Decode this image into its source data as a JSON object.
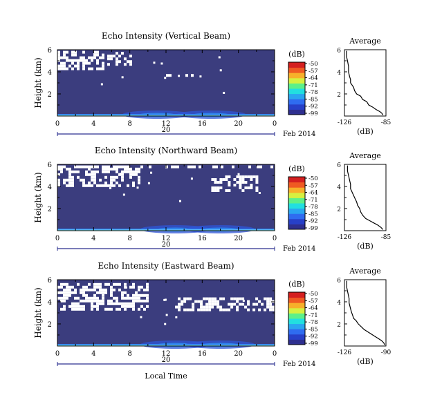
{
  "colors": {
    "background": "#3b3d7e",
    "gap": "#ffffff",
    "colorbar": [
      "#2e2f8f",
      "#2740c8",
      "#2f6cf0",
      "#2aa6f0",
      "#22dfe0",
      "#5cf08a",
      "#d6f040",
      "#f7b02a",
      "#ef5a22",
      "#d41f1f"
    ]
  },
  "panels": [
    {
      "title": "Echo Intensity (Vertical Beam)",
      "ylabel": "Height (km)",
      "yticks": [
        "6",
        "4",
        "2"
      ],
      "xticks": [
        "0",
        "4",
        "8",
        "12",
        "16",
        "20",
        "0"
      ],
      "date_tick": "20",
      "date_label": "Feb 2014",
      "cb_unit": "(dB)",
      "cb_ticks": [
        "-50",
        "-57",
        "-64",
        "-71",
        "-78",
        "-85",
        "-92",
        "-99"
      ],
      "avg_title": "Average",
      "avg_yticks": [
        "6",
        "4",
        "2"
      ],
      "avg_xticks": [
        "-126",
        "-85"
      ],
      "avg_xlabel": "(dB)"
    },
    {
      "title": "Echo Intensity (Northward Beam)",
      "ylabel": "Height (km)",
      "yticks": [
        "6",
        "4",
        "2"
      ],
      "xticks": [
        "0",
        "4",
        "8",
        "12",
        "16",
        "20",
        "0"
      ],
      "date_tick": "20",
      "date_label": "Feb 2014",
      "cb_unit": "(dB)",
      "cb_ticks": [
        "-50",
        "-57",
        "-64",
        "-71",
        "-78",
        "-85",
        "-92",
        "-99"
      ],
      "avg_title": "Average",
      "avg_yticks": [
        "6",
        "4",
        "2"
      ],
      "avg_xticks": [
        "-126",
        "-85"
      ],
      "avg_xlabel": "(dB)"
    },
    {
      "title": "Echo Intensity (Eastward Beam)",
      "ylabel": "Height (km)",
      "yticks": [
        "6",
        "4",
        "2"
      ],
      "xticks": [
        "0",
        "4",
        "8",
        "12",
        "16",
        "20",
        "0"
      ],
      "date_tick": "20",
      "date_label": "Feb 2014",
      "cb_unit": "(dB)",
      "cb_ticks": [
        "-50",
        "-57",
        "-64",
        "-71",
        "-78",
        "-85",
        "-92",
        "-99"
      ],
      "avg_title": "Average",
      "avg_yticks": [
        "6",
        "4",
        "2"
      ],
      "avg_xticks": [
        "-126",
        "-90"
      ],
      "avg_xlabel": "(dB)"
    }
  ],
  "xlabel": "Local Time",
  "chart_data": [
    {
      "type": "heatmap",
      "title": "Echo Intensity (Vertical Beam)",
      "xlabel": "",
      "ylabel": "Height (km)",
      "xlim": [
        0,
        24
      ],
      "ylim": [
        0,
        6
      ],
      "x_unit": "hour (local)",
      "colorbar_range": [
        -99,
        -50
      ],
      "missing_regions": [
        {
          "x": [
            0,
            5
          ],
          "y": [
            4.2,
            5.9
          ]
        },
        {
          "x": [
            5.5,
            8
          ],
          "y": [
            4.6,
            5.8
          ]
        },
        {
          "x": [
            12,
            15
          ],
          "y": [
            3.7,
            3.8
          ]
        }
      ],
      "enhanced_echo": {
        "x": [
          0,
          24
        ],
        "y": [
          0,
          0.5
        ],
        "peak_hours": [
          11,
          17
        ]
      }
    },
    {
      "type": "line",
      "title": "Average",
      "xlabel": "(dB)",
      "ylabel": "",
      "xlim": [
        -126,
        -85
      ],
      "ylim": [
        0,
        6
      ],
      "series": [
        {
          "x": [
            -124,
            -124,
            -123,
            -122,
            -122,
            -121,
            -120,
            -120,
            -117,
            -116,
            -114,
            -110,
            -108,
            -104,
            -102,
            -98,
            -95,
            -91,
            -89,
            -88
          ],
          "y": [
            5.9,
            5.4,
            5.0,
            4.5,
            4.0,
            3.6,
            3.3,
            3.0,
            2.6,
            2.3,
            2.0,
            1.8,
            1.5,
            1.3,
            1.0,
            0.8,
            0.6,
            0.4,
            0.25,
            0.1
          ]
        }
      ]
    },
    {
      "type": "heatmap",
      "title": "Echo Intensity (Northward Beam)",
      "xlabel": "",
      "ylabel": "Height (km)",
      "xlim": [
        0,
        24
      ],
      "ylim": [
        0,
        6
      ],
      "x_unit": "hour (local)",
      "colorbar_range": [
        -99,
        -50
      ],
      "missing_regions": [
        {
          "x": [
            0,
            9
          ],
          "y": [
            4.0,
            5.7
          ]
        },
        {
          "x": [
            17,
            22
          ],
          "y": [
            3.6,
            5.0
          ]
        },
        {
          "x": [
            0,
            24
          ],
          "y": [
            5.7,
            5.9
          ]
        }
      ],
      "enhanced_echo": {
        "x": [
          0,
          24
        ],
        "y": [
          0,
          0.5
        ],
        "peak_hours": [
          13,
          18
        ]
      }
    },
    {
      "type": "line",
      "title": "Average",
      "xlabel": "(dB)",
      "ylabel": "",
      "xlim": [
        -126,
        -85
      ],
      "ylim": [
        0,
        6
      ],
      "series": [
        {
          "x": [
            -123,
            -123,
            -122,
            -121,
            -120,
            -120,
            -118,
            -116,
            -115,
            -114,
            -113,
            -111,
            -110,
            -108,
            -105,
            -101,
            -97,
            -93,
            -90,
            -88
          ],
          "y": [
            5.9,
            5.4,
            5.0,
            4.6,
            4.2,
            3.8,
            3.4,
            3.0,
            2.8,
            2.6,
            2.3,
            2.0,
            1.7,
            1.4,
            1.1,
            0.9,
            0.7,
            0.5,
            0.3,
            0.1
          ]
        }
      ]
    },
    {
      "type": "heatmap",
      "title": "Echo Intensity (Eastward Beam)",
      "xlabel": "Local Time",
      "ylabel": "Height (km)",
      "xlim": [
        0,
        24
      ],
      "ylim": [
        0,
        6
      ],
      "x_unit": "hour (local)",
      "colorbar_range": [
        -99,
        -50
      ],
      "missing_regions": [
        {
          "x": [
            0,
            10
          ],
          "y": [
            3.4,
            5.7
          ]
        },
        {
          "x": [
            13,
            24
          ],
          "y": [
            3.3,
            4.4
          ]
        }
      ],
      "enhanced_echo": {
        "x": [
          0,
          24
        ],
        "y": [
          0,
          0.5
        ],
        "peak_hours": [
          13,
          18
        ]
      }
    },
    {
      "type": "line",
      "title": "Average",
      "xlabel": "(dB)",
      "ylabel": "",
      "xlim": [
        -126,
        -90
      ],
      "ylim": [
        0,
        6
      ],
      "series": [
        {
          "x": [
            -124,
            -124,
            -123,
            -122,
            -122,
            -121,
            -120,
            -119,
            -118,
            -116,
            -114,
            -112,
            -109,
            -106,
            -103,
            -100,
            -97,
            -94,
            -92,
            -91
          ],
          "y": [
            5.9,
            5.3,
            4.8,
            4.3,
            3.9,
            3.5,
            3.1,
            2.8,
            2.5,
            2.3,
            2.0,
            1.8,
            1.5,
            1.3,
            1.1,
            0.9,
            0.7,
            0.5,
            0.3,
            0.1
          ]
        }
      ]
    }
  ]
}
